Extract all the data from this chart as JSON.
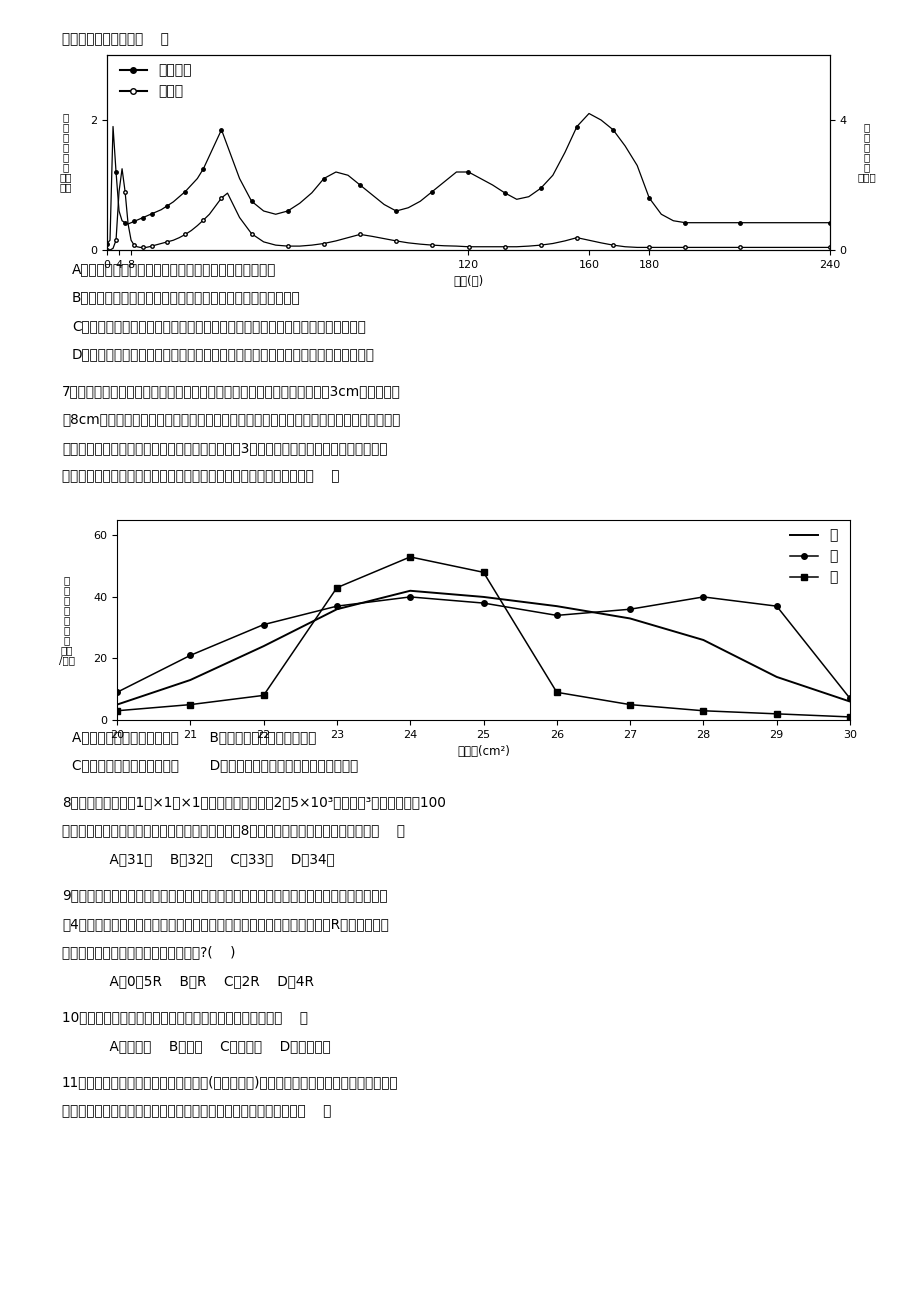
{
  "background_color": "#ffffff",
  "page_width": 9.2,
  "page_height": 13.02,
  "intro_text": "下列叙述中正确的是（    ）",
  "chart1": {
    "x_prey": [
      0,
      1,
      2,
      3,
      4,
      5,
      6,
      7,
      8,
      9,
      10,
      11,
      12,
      13,
      14,
      15,
      16,
      18,
      20,
      22,
      24,
      26,
      28,
      30,
      32,
      34,
      36,
      38,
      40,
      44,
      48,
      52,
      56,
      60,
      64,
      68,
      72,
      76,
      80,
      84,
      88,
      92,
      96,
      100,
      104,
      108,
      112,
      116,
      120,
      124,
      128,
      132,
      136,
      140,
      144,
      148,
      152,
      156,
      160,
      164,
      168,
      172,
      176,
      180,
      184,
      188,
      192,
      196,
      200,
      210,
      220,
      230,
      240
    ],
    "y_prey": [
      0.1,
      0.15,
      1.9,
      1.2,
      0.6,
      0.45,
      0.42,
      0.4,
      0.42,
      0.44,
      0.46,
      0.48,
      0.5,
      0.52,
      0.54,
      0.56,
      0.58,
      0.62,
      0.68,
      0.74,
      0.82,
      0.9,
      1.0,
      1.1,
      1.25,
      1.45,
      1.65,
      1.85,
      1.6,
      1.1,
      0.75,
      0.6,
      0.55,
      0.6,
      0.72,
      0.88,
      1.1,
      1.2,
      1.15,
      1.0,
      0.85,
      0.7,
      0.6,
      0.65,
      0.75,
      0.9,
      1.05,
      1.2,
      1.2,
      1.1,
      1.0,
      0.88,
      0.78,
      0.82,
      0.95,
      1.15,
      1.5,
      1.9,
      2.1,
      2.0,
      1.85,
      1.6,
      1.3,
      0.8,
      0.55,
      0.45,
      0.42,
      0.42,
      0.42,
      0.42,
      0.42,
      0.42,
      0.42
    ],
    "x_pred": [
      0,
      1,
      2,
      3,
      4,
      5,
      6,
      7,
      8,
      9,
      10,
      11,
      12,
      13,
      14,
      15,
      16,
      18,
      20,
      22,
      24,
      26,
      28,
      30,
      32,
      34,
      36,
      38,
      40,
      44,
      48,
      52,
      56,
      60,
      64,
      68,
      72,
      76,
      80,
      84,
      88,
      92,
      96,
      100,
      104,
      108,
      112,
      116,
      120,
      124,
      128,
      132,
      136,
      140,
      144,
      148,
      152,
      156,
      160,
      164,
      168,
      172,
      176,
      180,
      184,
      188,
      192,
      196,
      200,
      210,
      220,
      230,
      240
    ],
    "y_pred": [
      0.0,
      0.0,
      0.05,
      0.3,
      1.8,
      2.5,
      1.8,
      0.8,
      0.3,
      0.15,
      0.1,
      0.08,
      0.08,
      0.08,
      0.1,
      0.12,
      0.15,
      0.2,
      0.25,
      0.3,
      0.38,
      0.48,
      0.6,
      0.75,
      0.92,
      1.1,
      1.35,
      1.6,
      1.75,
      1.0,
      0.5,
      0.25,
      0.15,
      0.12,
      0.12,
      0.15,
      0.2,
      0.28,
      0.38,
      0.48,
      0.42,
      0.35,
      0.28,
      0.22,
      0.18,
      0.15,
      0.13,
      0.12,
      0.1,
      0.1,
      0.1,
      0.1,
      0.1,
      0.12,
      0.15,
      0.2,
      0.28,
      0.38,
      0.3,
      0.22,
      0.15,
      0.1,
      0.08,
      0.08,
      0.08,
      0.08,
      0.08,
      0.08,
      0.08,
      0.08,
      0.08,
      0.08,
      0.08
    ],
    "xlabel": "时间(天)",
    "ylabel_left": "被\n捕\n食\n者\n数\n量\n（千\n只）",
    "ylabel_right": "捕\n食\n者\n数\n量\n（只）",
    "xlim": [
      0,
      240
    ],
    "ylim_left": [
      0,
      3
    ],
    "ylim_right": [
      0,
      6
    ],
    "xticks": [
      0,
      4,
      8,
      120,
      160,
      180,
      240
    ],
    "yticks_left": [
      0,
      2
    ],
    "yticks_right": [
      0,
      4
    ],
    "legend_prey": "被捕食者",
    "legend_pred": "捕　食"
  },
  "answers_q6": [
    "A．捕食者的数量与被捕食者的数量之间没有必然的联系",
    "B．捕食者与被捕食者相互影响，使种群数量发生有规律的波动",
    "C．捕食者的数量受到被捕食者的控制，但被捕食者数量的变化不受捕食者的影响",
    "D．被捕食者的数量受到被捕食者的控制，但捕食者数量的变化不受被捕食者的影响"
  ],
  "q7_text_lines": [
    "7．同种生物个体之间有时会存在很大的差异，如橡树树叶的长度，有的长3cm，有的则长",
    "达8cm。形态上存在差异的不同种生物在适应环境变化的能力上，也会存在差异，如叶片面",
    "积小的物种能更好地适应干旱的气候。下图为某地3种不同植物叶面积与单位面积个体数量",
    "之间的关系图。如果该地遇到干旱，根据图判断下列叙述中正确的是（    ）"
  ],
  "chart2": {
    "xlabel": "叶面积(cm²)",
    "ylabel": "单\n位\n面\n积\n个\n体\n数\n（株\n/亩）",
    "xlim": [
      20,
      30
    ],
    "ylim": [
      0,
      65
    ],
    "xticks": [
      20,
      21,
      22,
      23,
      24,
      25,
      26,
      27,
      28,
      29,
      30
    ],
    "yticks": [
      0,
      20,
      40,
      60
    ],
    "x_jia": [
      20,
      21,
      22,
      23,
      24,
      25,
      26,
      27,
      28,
      29,
      30
    ],
    "y_jia": [
      5,
      13,
      24,
      36,
      42,
      40,
      37,
      33,
      26,
      14,
      6
    ],
    "x_yi": [
      20,
      21,
      22,
      23,
      24,
      25,
      26,
      27,
      28,
      29,
      30
    ],
    "y_yi": [
      9,
      21,
      31,
      37,
      40,
      38,
      34,
      36,
      40,
      37,
      7
    ],
    "x_bing": [
      20,
      21,
      22,
      23,
      24,
      25,
      26,
      27,
      28,
      29,
      30
    ],
    "y_bing": [
      3,
      5,
      8,
      43,
      53,
      48,
      9,
      5,
      3,
      2,
      1
    ],
    "legend_jia": "甲",
    "legend_yi": "乙",
    "legend_bing": "丙"
  },
  "answers_q7": [
    "A．植物甲比植物乙更能适应       B．植物乙比植物丙更能适应",
    "C．植物丙比植物甲更能适应       D．植物甲和植物丙具有同样的适应能力"
  ],
  "q8_lines": [
    "8．现在厂家有一户1米×1米×1米的水泥块，密度为2．5×10³千克／米³，某工地需要100",
    "块水泥块，要求厂家运到工地，厂家只有限载量为8吨的货车，则需要分几车才能运完（    ）"
  ],
  "answers_q8": "    A．31车    B．32车    C．33车    D．34车",
  "q9_lines": [
    "9．夜晚，人们仰望天空，有时能看到闪烁的人造地球卫星。地球赤道处有一观察者，在日",
    "落4小时后看到一颗人造地球卫星从赤道正上方高空中经过，设地球半径为R，则这颗人造",
    "地球卫星距赤道地面的高度至少为多少?(    )"
  ],
  "answers_q9": "    A．0．5R    B．R    C．2R    D．4R",
  "q10_text": "10．在水溶液中，一般不跟其他物质发生复分解反应的是（    ）",
  "answers_q10": "    A．氯化锇    B．硒酸    C．硒酸钗    D．氢氧化钗",
  "q11_lines": [
    "11．下图表示是大、中、小型土壤动物(无脊椎动物)在各生态系统中数量的变化情况。这些",
    "土壤动物属于分解者。由中纬度向高纬度，土壤有机物分解速率将（    ）"
  ]
}
